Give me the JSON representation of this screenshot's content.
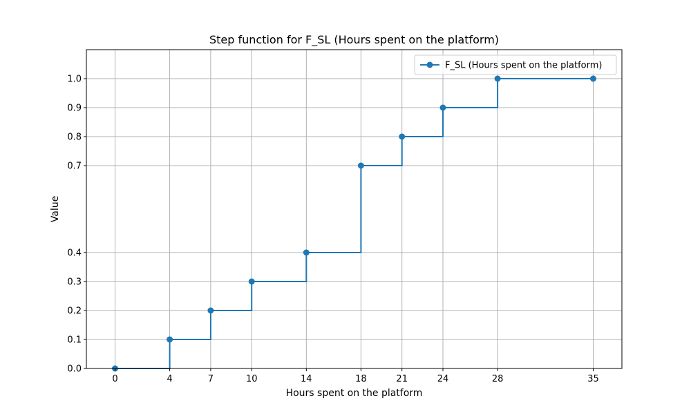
{
  "chart_data": {
    "type": "line",
    "style": "step-post",
    "title": "Step function for F_SL (Hours spent on the platform)",
    "xlabel": "Hours spent on the platform",
    "ylabel": "Value",
    "xlim": [
      -2.1,
      37.1
    ],
    "ylim": [
      0,
      1.1
    ],
    "xticks": [
      0,
      4,
      7,
      10,
      14,
      18,
      21,
      24,
      28,
      35
    ],
    "yticks": [
      0.0,
      0.1,
      0.2,
      0.3,
      0.4,
      0.7,
      0.8,
      0.9,
      1.0
    ],
    "ytick_labels": [
      "0.0",
      "0.1",
      "0.2",
      "0.3",
      "0.4",
      "0.7",
      "0.8",
      "0.9",
      "1.0"
    ],
    "grid": true,
    "legend_position": "top-right",
    "series": [
      {
        "name": "F_SL (Hours spent on the platform)",
        "color": "#1f77b4",
        "marker": "circle",
        "x": [
          0,
          4,
          7,
          10,
          14,
          18,
          21,
          24,
          28,
          35
        ],
        "y": [
          0.0,
          0.1,
          0.2,
          0.3,
          0.4,
          0.7,
          0.8,
          0.9,
          1.0,
          1.0
        ]
      }
    ]
  }
}
